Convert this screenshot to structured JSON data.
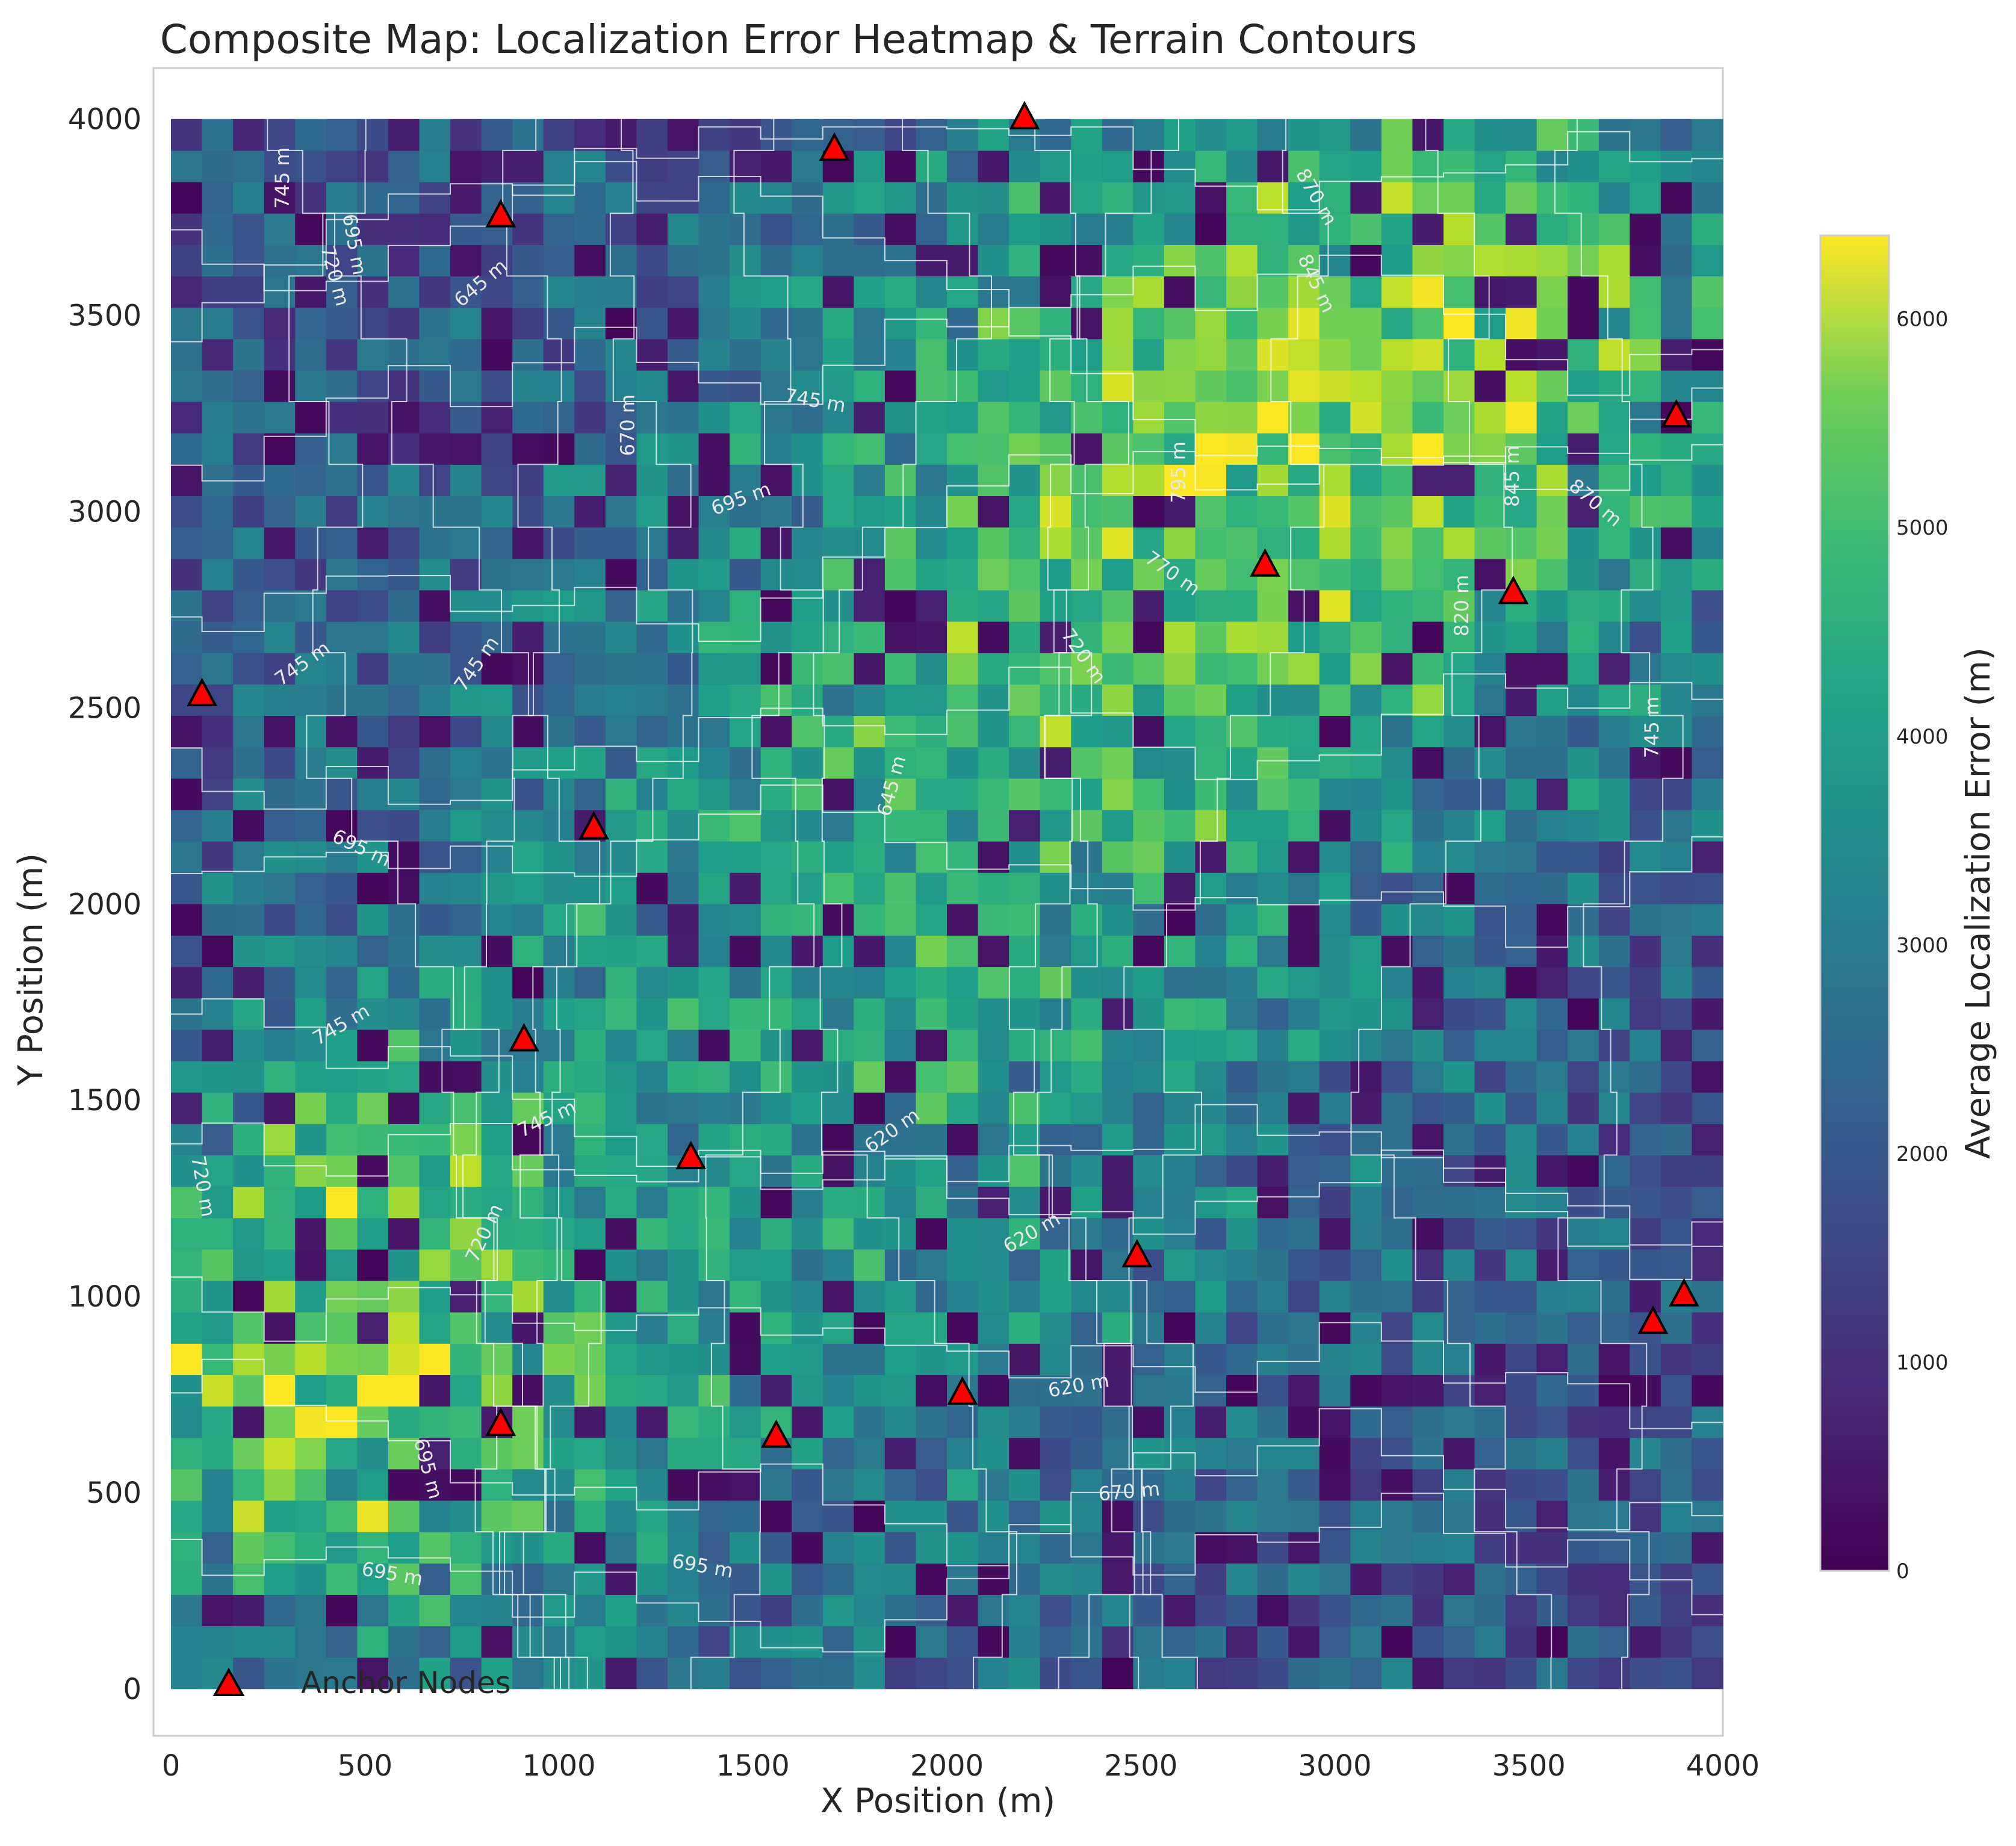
{
  "chart_data": {
    "type": "heatmap",
    "title": "Composite Map: Localization Error Heatmap & Terrain Contours",
    "xlabel": "X Position (m)",
    "ylabel": "Y Position (m)",
    "xlim": [
      0,
      4000
    ],
    "ylim": [
      0,
      4000
    ],
    "x_ticks": [
      0,
      500,
      1000,
      1500,
      2000,
      2500,
      3000,
      3500,
      4000
    ],
    "y_ticks": [
      0,
      500,
      1000,
      1500,
      2000,
      2500,
      3000,
      3500,
      4000
    ],
    "x_tick_labels": [
      "0",
      "500",
      "1000",
      "1500",
      "2000",
      "2500",
      "3000",
      "3500",
      "4000"
    ],
    "y_tick_labels": [
      "0",
      "500",
      "1000",
      "1500",
      "2000",
      "2500",
      "3000",
      "3500",
      "4000"
    ],
    "grid": false,
    "heatmap": {
      "grid_size": 50,
      "colormap": "viridis",
      "value_range": [
        0,
        6400
      ],
      "colorbar_label": "Average Localization Error (m)",
      "colorbar_ticks": [
        0,
        1000,
        2000,
        3000,
        4000,
        5000,
        6000
      ],
      "colorbar_tick_labels": [
        "0",
        "1000",
        "2000",
        "3000",
        "4000",
        "5000",
        "6000"
      ],
      "hotspots": [
        {
          "x": 400,
          "y": 800,
          "radius": 550,
          "value": 5200
        },
        {
          "x": 3300,
          "y": 3400,
          "radius": 650,
          "value": 4300
        },
        {
          "x": 2400,
          "y": 3000,
          "radius": 700,
          "value": 3200
        },
        {
          "x": 1800,
          "y": 1600,
          "radius": 900,
          "value": 2700
        }
      ]
    },
    "contours": {
      "color": "#ffffff",
      "unit": "m",
      "levels": [
        620,
        645,
        670,
        695,
        720,
        745,
        770,
        795,
        820,
        845,
        870
      ],
      "labels": [
        {
          "text": "745 m",
          "x": 290,
          "y": 3850,
          "angle": 90
        },
        {
          "text": "720 m",
          "x": 420,
          "y": 3600,
          "angle": -75
        },
        {
          "text": "695 m",
          "x": 470,
          "y": 3680,
          "angle": -80
        },
        {
          "text": "645 m",
          "x": 800,
          "y": 3580,
          "angle": 40
        },
        {
          "text": "670 m",
          "x": 1180,
          "y": 3220,
          "angle": 90
        },
        {
          "text": "745 m",
          "x": 1660,
          "y": 3280,
          "angle": -10
        },
        {
          "text": "695 m",
          "x": 1470,
          "y": 3030,
          "angle": 20
        },
        {
          "text": "795 m",
          "x": 2600,
          "y": 3100,
          "angle": 90
        },
        {
          "text": "770 m",
          "x": 2580,
          "y": 2840,
          "angle": -35
        },
        {
          "text": "720 m",
          "x": 2350,
          "y": 2630,
          "angle": -55
        },
        {
          "text": "870 m",
          "x": 2950,
          "y": 3800,
          "angle": -60
        },
        {
          "text": "845 m",
          "x": 2950,
          "y": 3580,
          "angle": -65
        },
        {
          "text": "845 m",
          "x": 3460,
          "y": 3090,
          "angle": 90
        },
        {
          "text": "870 m",
          "x": 3670,
          "y": 3020,
          "angle": -40
        },
        {
          "text": "820 m",
          "x": 3330,
          "y": 2760,
          "angle": 90
        },
        {
          "text": "745 m",
          "x": 3820,
          "y": 2450,
          "angle": 90
        },
        {
          "text": "745 m",
          "x": 340,
          "y": 2610,
          "angle": 35
        },
        {
          "text": "745 m",
          "x": 790,
          "y": 2610,
          "angle": 55
        },
        {
          "text": "645 m",
          "x": 1860,
          "y": 2300,
          "angle": 75
        },
        {
          "text": "695 m",
          "x": 490,
          "y": 2140,
          "angle": -25
        },
        {
          "text": "745 m",
          "x": 440,
          "y": 1690,
          "angle": 30
        },
        {
          "text": "745 m",
          "x": 970,
          "y": 1450,
          "angle": 25
        },
        {
          "text": "620 m",
          "x": 1860,
          "y": 1420,
          "angle": 35
        },
        {
          "text": "720 m",
          "x": 80,
          "y": 1280,
          "angle": -80
        },
        {
          "text": "720 m",
          "x": 810,
          "y": 1160,
          "angle": 65
        },
        {
          "text": "620 m",
          "x": 2220,
          "y": 1160,
          "angle": 30
        },
        {
          "text": "620 m",
          "x": 2340,
          "y": 770,
          "angle": 10
        },
        {
          "text": "695 m",
          "x": 660,
          "y": 560,
          "angle": -75
        },
        {
          "text": "670 m",
          "x": 2470,
          "y": 500,
          "angle": 5
        },
        {
          "text": "695 m",
          "x": 1370,
          "y": 310,
          "angle": -10
        },
        {
          "text": "695 m",
          "x": 570,
          "y": 290,
          "angle": -10
        }
      ]
    },
    "series": [
      {
        "name": "Anchor Nodes",
        "type": "scatter",
        "marker": "triangle",
        "color": "#ff0000",
        "edge_color": "#000000",
        "points": [
          {
            "x": 2200,
            "y": 4000
          },
          {
            "x": 1710,
            "y": 3920
          },
          {
            "x": 850,
            "y": 3750
          },
          {
            "x": 3880,
            "y": 3240
          },
          {
            "x": 2820,
            "y": 2860
          },
          {
            "x": 3460,
            "y": 2790
          },
          {
            "x": 80,
            "y": 2530
          },
          {
            "x": 1090,
            "y": 2190
          },
          {
            "x": 910,
            "y": 1650
          },
          {
            "x": 1340,
            "y": 1350
          },
          {
            "x": 2490,
            "y": 1100
          },
          {
            "x": 3900,
            "y": 1000
          },
          {
            "x": 3820,
            "y": 930
          },
          {
            "x": 2040,
            "y": 750
          },
          {
            "x": 850,
            "y": 670
          },
          {
            "x": 1560,
            "y": 640
          }
        ]
      }
    ],
    "legend": {
      "placement": "lower-left",
      "entries": [
        "Anchor Nodes"
      ]
    }
  }
}
